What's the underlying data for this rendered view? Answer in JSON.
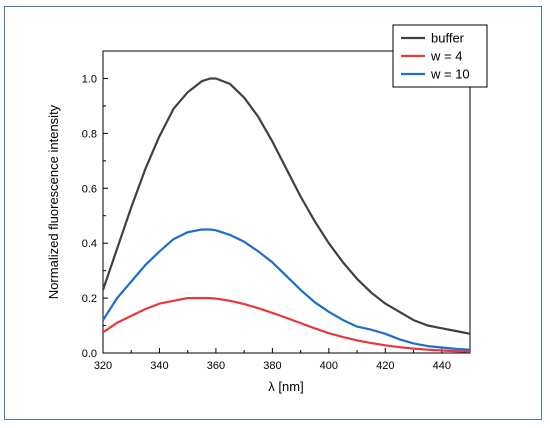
{
  "chart_data": {
    "type": "line",
    "title": "",
    "xlabel": "λ [nm]",
    "ylabel": "Normalized fluorescence intensity",
    "xlim": [
      320,
      450
    ],
    "ylim": [
      0,
      1.1
    ],
    "x_ticks": [
      320,
      340,
      360,
      380,
      400,
      420,
      440
    ],
    "y_ticks": [
      0.0,
      0.2,
      0.4,
      0.6,
      0.8,
      1.0
    ],
    "y_tick_labels": [
      "0.0",
      "0.2",
      "0.4",
      "0.6",
      "0.8",
      "1.0"
    ],
    "grid": false,
    "legend_position": "top-right",
    "x": [
      320,
      325,
      330,
      335,
      340,
      345,
      350,
      355,
      358,
      360,
      365,
      370,
      375,
      380,
      385,
      390,
      395,
      400,
      405,
      410,
      415,
      420,
      425,
      430,
      435,
      440,
      445,
      450
    ],
    "series": [
      {
        "name": "buffer",
        "color": "#404040",
        "values": [
          0.23,
          0.38,
          0.53,
          0.67,
          0.79,
          0.89,
          0.95,
          0.99,
          1.0,
          1.0,
          0.98,
          0.93,
          0.86,
          0.77,
          0.67,
          0.57,
          0.48,
          0.4,
          0.33,
          0.27,
          0.22,
          0.18,
          0.15,
          0.12,
          0.1,
          0.09,
          0.08,
          0.07
        ]
      },
      {
        "name": "w = 4",
        "color": "#e8383d",
        "values": [
          0.075,
          0.11,
          0.135,
          0.16,
          0.18,
          0.19,
          0.2,
          0.2,
          0.2,
          0.198,
          0.19,
          0.178,
          0.163,
          0.146,
          0.128,
          0.109,
          0.09,
          0.072,
          0.058,
          0.046,
          0.036,
          0.028,
          0.021,
          0.016,
          0.012,
          0.009,
          0.007,
          0.005
        ]
      },
      {
        "name": "w = 10",
        "color": "#1f6ecf",
        "values": [
          0.12,
          0.2,
          0.26,
          0.32,
          0.37,
          0.415,
          0.44,
          0.45,
          0.45,
          0.447,
          0.43,
          0.405,
          0.37,
          0.33,
          0.28,
          0.23,
          0.185,
          0.15,
          0.12,
          0.096,
          0.085,
          0.07,
          0.05,
          0.035,
          0.025,
          0.02,
          0.015,
          0.012
        ]
      }
    ]
  }
}
